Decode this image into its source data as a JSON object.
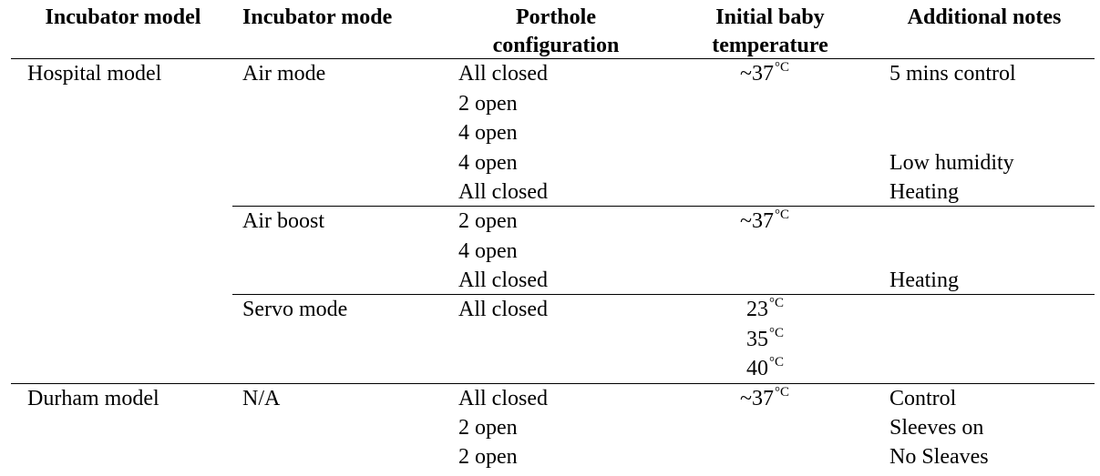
{
  "headers": {
    "model": "Incubator model",
    "mode": "Incubator mode",
    "porthole_line1": "Porthole",
    "porthole_line2": "configuration",
    "temp_line1": "Initial baby",
    "temp_line2": "temperature",
    "notes": "Additional notes"
  },
  "models": {
    "hospital": "Hospital model",
    "durham": "Durham model"
  },
  "modes": {
    "air_mode": "Air mode",
    "air_boost": "Air boost",
    "servo_mode": "Servo mode",
    "na": "N/A"
  },
  "porthole": {
    "r1": "All closed",
    "r2": "2 open",
    "r3": "4 open",
    "r4": "4 open",
    "r5": "All closed",
    "r6": "2 open",
    "r7": "4 open",
    "r8": "All closed",
    "r9": "All closed",
    "r10": "All closed",
    "r11": "2 open",
    "r12": "2 open"
  },
  "temps": {
    "air_mode": "~37",
    "air_boost": "~37",
    "servo_23": "23",
    "servo_35": "35",
    "servo_40": "40",
    "durham": "~37",
    "unit": "°C"
  },
  "notes": {
    "r1": "5 mins control",
    "r4": "Low humidity",
    "r5": "Heating",
    "r8": "Heating",
    "r10": "Control",
    "r11": "Sleeves on",
    "r12": "No Sleaves"
  }
}
